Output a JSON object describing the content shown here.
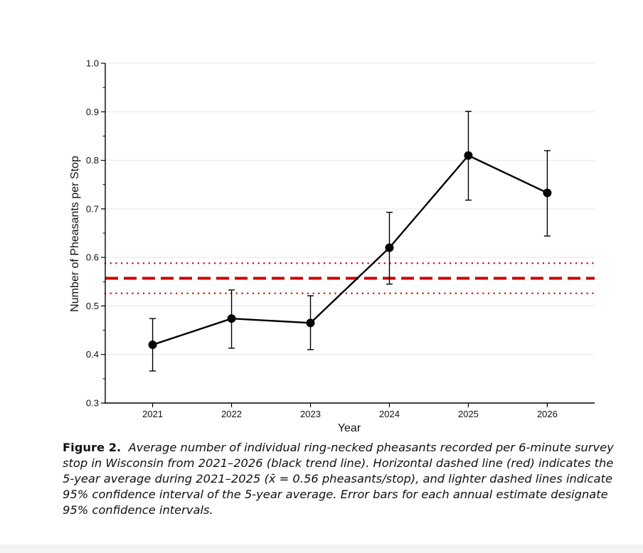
{
  "chart_data": {
    "type": "line",
    "xlabel": "Year",
    "ylabel": "Number of Pheasants per Stop",
    "x": [
      2021,
      2022,
      2023,
      2024,
      2025,
      2026
    ],
    "series": [
      {
        "values": [
          0.42,
          0.474,
          0.465,
          0.62,
          0.81,
          0.733
        ],
        "ci_lower": [
          0.366,
          0.413,
          0.41,
          0.545,
          0.718,
          0.644
        ],
        "ci_upper": [
          0.474,
          0.533,
          0.521,
          0.693,
          0.901,
          0.82
        ]
      }
    ],
    "reference_lines": {
      "mean": 0.557,
      "ci_upper": 0.588,
      "ci_lower": 0.526,
      "color": "#cc0000"
    },
    "ylim": [
      0.3,
      1.0
    ],
    "xlim": [
      2020.4,
      2026.6
    ],
    "yticks": [
      "0.3",
      "0.4",
      "0.5",
      "0.6",
      "0.7",
      "0.8",
      "0.9",
      "1.0"
    ],
    "xticks": [
      "2021",
      "2022",
      "2023",
      "2024",
      "2025",
      "2026"
    ],
    "grid": true,
    "line_color": "#000000"
  },
  "caption": {
    "label": "Figure 2.",
    "text": "Average number of individual ring-necked pheasants recorded per 6-minute survey stop in Wisconsin from 2021–2026 (black trend line). Horizontal dashed line (red) indicates the 5-year average during 2021–2025 (x̄ = 0.56 pheasants/stop), and lighter dashed lines indicate 95% confidence interval of the 5-year average. Error bars for each annual estimate designate 95% confidence intervals."
  }
}
